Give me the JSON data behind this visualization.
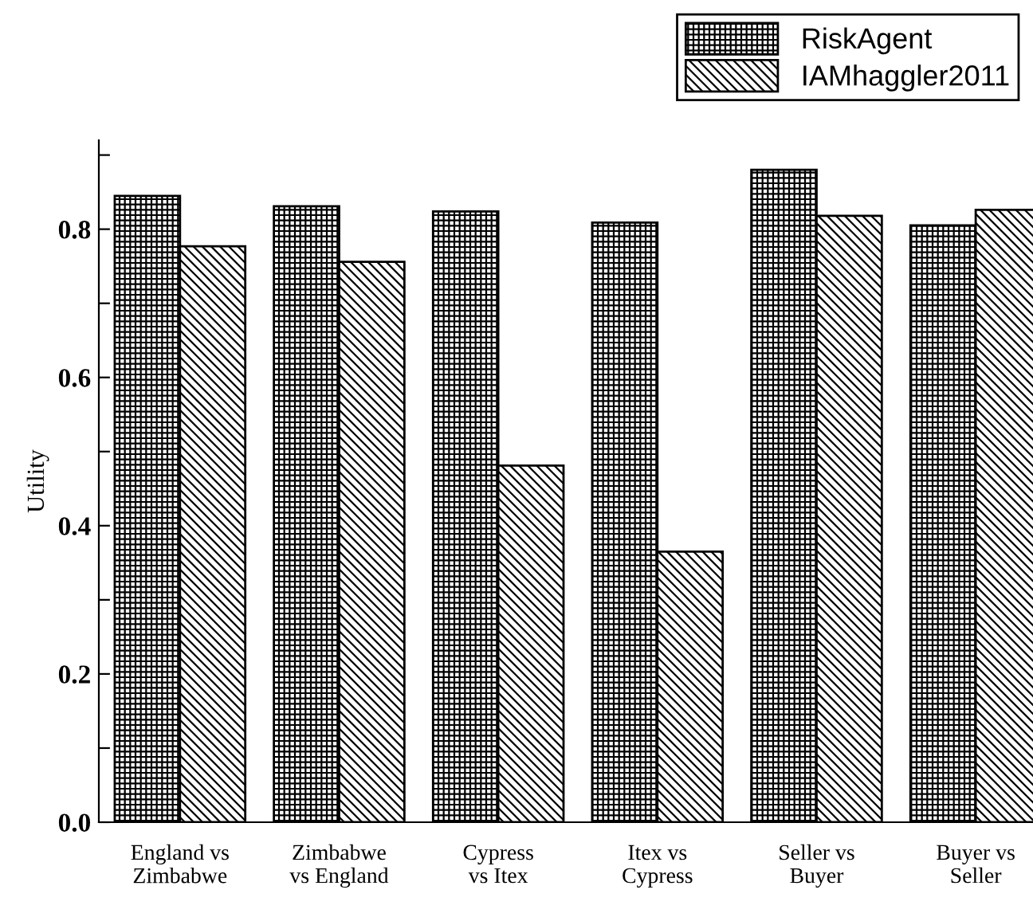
{
  "chart_data": {
    "type": "bar",
    "ylabel": "Utility",
    "categories": [
      "England vs\nZimbabwe",
      "Zimbabwe\nvs England",
      "Cypress\nvs Itex",
      "Itex vs\nCypress",
      "Seller vs\nBuyer",
      "Buyer vs\nSeller"
    ],
    "series": [
      {
        "name": "RiskAgent",
        "color": "#000000",
        "values": [
          0.845,
          0.831,
          0.824,
          0.809,
          0.88,
          0.805
        ]
      },
      {
        "name": "IAMhaggler2011",
        "color": "#000000",
        "values": [
          0.777,
          0.756,
          0.481,
          0.365,
          0.818,
          0.826
        ]
      }
    ],
    "ylim": [
      0,
      0.92
    ],
    "yticks": [
      {
        "value": 0,
        "label": "0.0"
      },
      {
        "value": 0.1,
        "label": null
      },
      0.2,
      {
        "value": 0.3,
        "label": null
      },
      0.4,
      {
        "value": 0.5,
        "label": null
      },
      0.6,
      {
        "value": 0.7,
        "label": null
      },
      0.8,
      {
        "value": 0.9,
        "label": null
      }
    ],
    "grid": false,
    "legend": "top right"
  }
}
